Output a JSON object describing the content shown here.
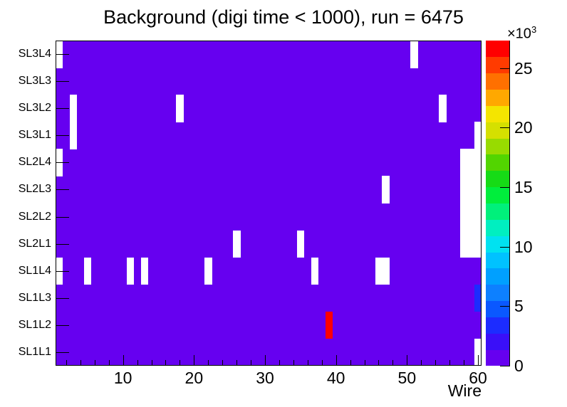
{
  "title": "Background (digi time < 1000), run = 6475",
  "axes": {
    "x": {
      "label": "Wire",
      "min": 0.5,
      "max": 60.5,
      "major_ticks": [
        10,
        20,
        30,
        40,
        50,
        60
      ],
      "minor_tick_step": 2
    },
    "y": {
      "categories_top_to_bottom": [
        "SL3L4",
        "SL3L3",
        "SL3L2",
        "SL3L1",
        "SL2L4",
        "SL2L3",
        "SL2L2",
        "SL2L1",
        "SL1L4",
        "SL1L3",
        "SL1L2",
        "SL1L1"
      ]
    }
  },
  "colorbar": {
    "exponent_prefix": "×10",
    "exponent_power": "3",
    "tick_values": [
      0,
      5,
      10,
      15,
      20,
      25
    ],
    "max_value_thousands": 27.3,
    "palette_bottom_to_top": [
      "#6600F0",
      "#3A0FF8",
      "#1C2CFF",
      "#0A58FF",
      "#0D80FF",
      "#00A0FF",
      "#00C2FF",
      "#00E2F0",
      "#00EFC0",
      "#00F07B",
      "#00EE3C",
      "#16DB16",
      "#52D500",
      "#98DB00",
      "#D5E000",
      "#F4E500",
      "#FFA800",
      "#FF7000",
      "#FF3B00",
      "#FF0000"
    ]
  },
  "chart_data": {
    "type": "heatmap",
    "title": "Background (digi time < 1000), run = 6475",
    "xlabel": "Wire",
    "x_range": [
      1,
      60
    ],
    "y_categories_top_to_bottom": [
      "SL3L4",
      "SL3L3",
      "SL3L2",
      "SL3L1",
      "SL2L4",
      "SL2L3",
      "SL2L2",
      "SL2L1",
      "SL1L4",
      "SL1L3",
      "SL1L2",
      "SL1L1"
    ],
    "z_unit": "counts (×10³ on scale)",
    "z_max": 27300,
    "default_bin": {
      "color": "#6600F0",
      "meaning": "low occupancy, bottom palette bucket (< ~1400)"
    },
    "empty_bins_white": [
      {
        "layer": "SL3L4",
        "wires": [
          1,
          51
        ]
      },
      {
        "layer": "SL3L2",
        "wires": [
          3,
          18,
          55
        ]
      },
      {
        "layer": "SL3L1",
        "wires": [
          3,
          60
        ]
      },
      {
        "layer": "SL2L4",
        "wires": [
          1,
          58,
          59,
          60
        ]
      },
      {
        "layer": "SL2L3",
        "wires": [
          47,
          58,
          59,
          60
        ]
      },
      {
        "layer": "SL2L2",
        "wires": [
          58,
          59,
          60
        ]
      },
      {
        "layer": "SL2L1",
        "wires": [
          26,
          35,
          58,
          59,
          60
        ]
      },
      {
        "layer": "SL1L4",
        "wires": [
          1,
          5,
          11,
          13,
          22,
          37,
          46,
          47
        ]
      },
      {
        "layer": "SL1L1",
        "wires": [
          60
        ]
      }
    ],
    "hot_bins": [
      {
        "layer": "SL1L2",
        "wire": 39,
        "value": 27000,
        "color": "#FF0000"
      },
      {
        "layer": "SL1L3",
        "wire": 60,
        "value": 3500,
        "color": "#1C2CFF"
      }
    ]
  }
}
